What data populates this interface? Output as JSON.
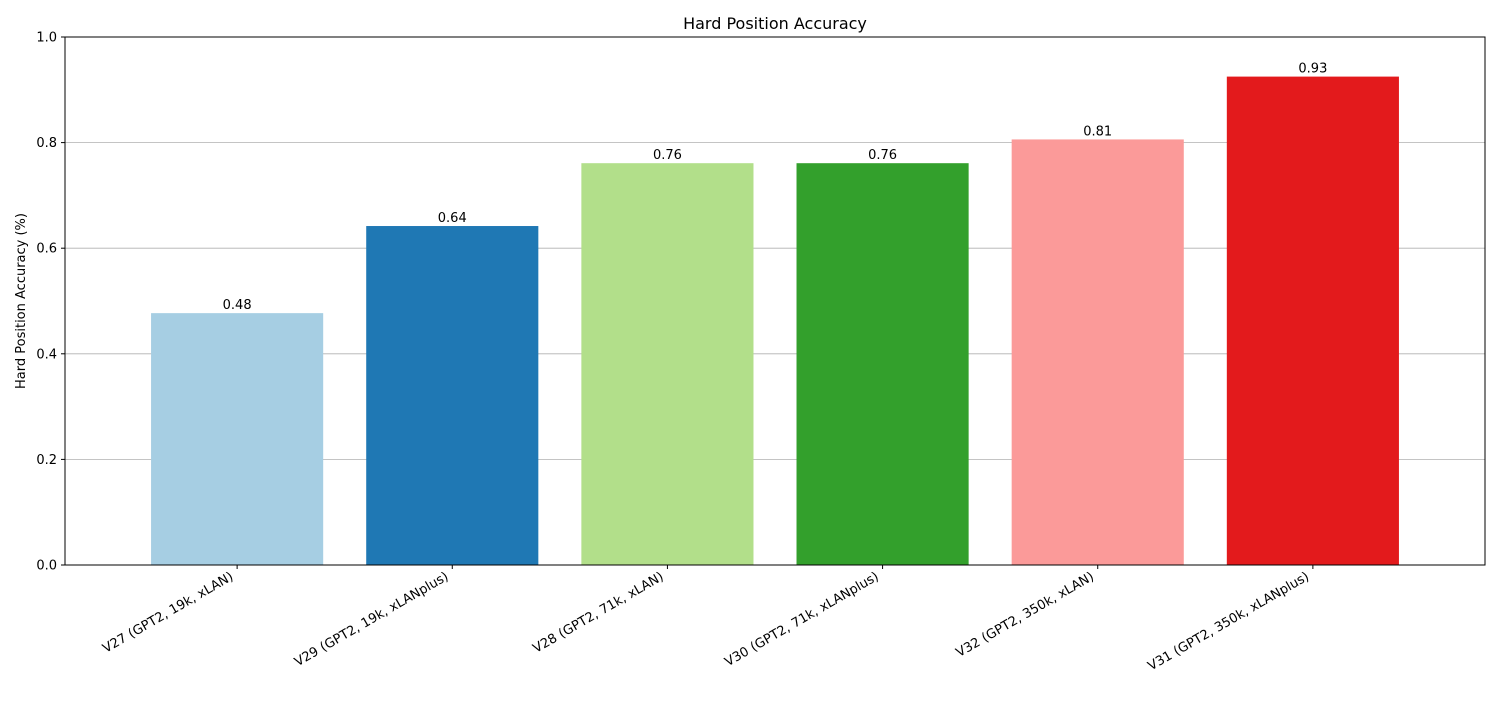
{
  "chart_data": {
    "type": "bar",
    "title": "Hard Position Accuracy",
    "xlabel": "",
    "ylabel": "Hard Position Accuracy (%)",
    "ylim": [
      0,
      1.0
    ],
    "yticks": [
      0.0,
      0.2,
      0.4,
      0.6,
      0.8,
      1.0
    ],
    "ytick_labels": [
      "0.0",
      "0.2",
      "0.4",
      "0.6",
      "0.8",
      "1.0"
    ],
    "grid": "y",
    "categories": [
      "V27 (GPT2, 19k, xLAN)",
      "V29 (GPT2, 19k, xLANplus)",
      "V28 (GPT2, 71k, xLAN)",
      "V30 (GPT2, 71k, xLANplus)",
      "V32 (GPT2, 350k, xLAN)",
      "V31 (GPT2, 350k, xLANplus)"
    ],
    "values": [
      0.477,
      0.642,
      0.761,
      0.761,
      0.806,
      0.925
    ],
    "value_labels": [
      "0.48",
      "0.64",
      "0.76",
      "0.76",
      "0.81",
      "0.93"
    ],
    "colors": [
      "#a6cee3",
      "#1f78b4",
      "#b2df8a",
      "#33a02c",
      "#fb9a99",
      "#e31a1c"
    ]
  }
}
